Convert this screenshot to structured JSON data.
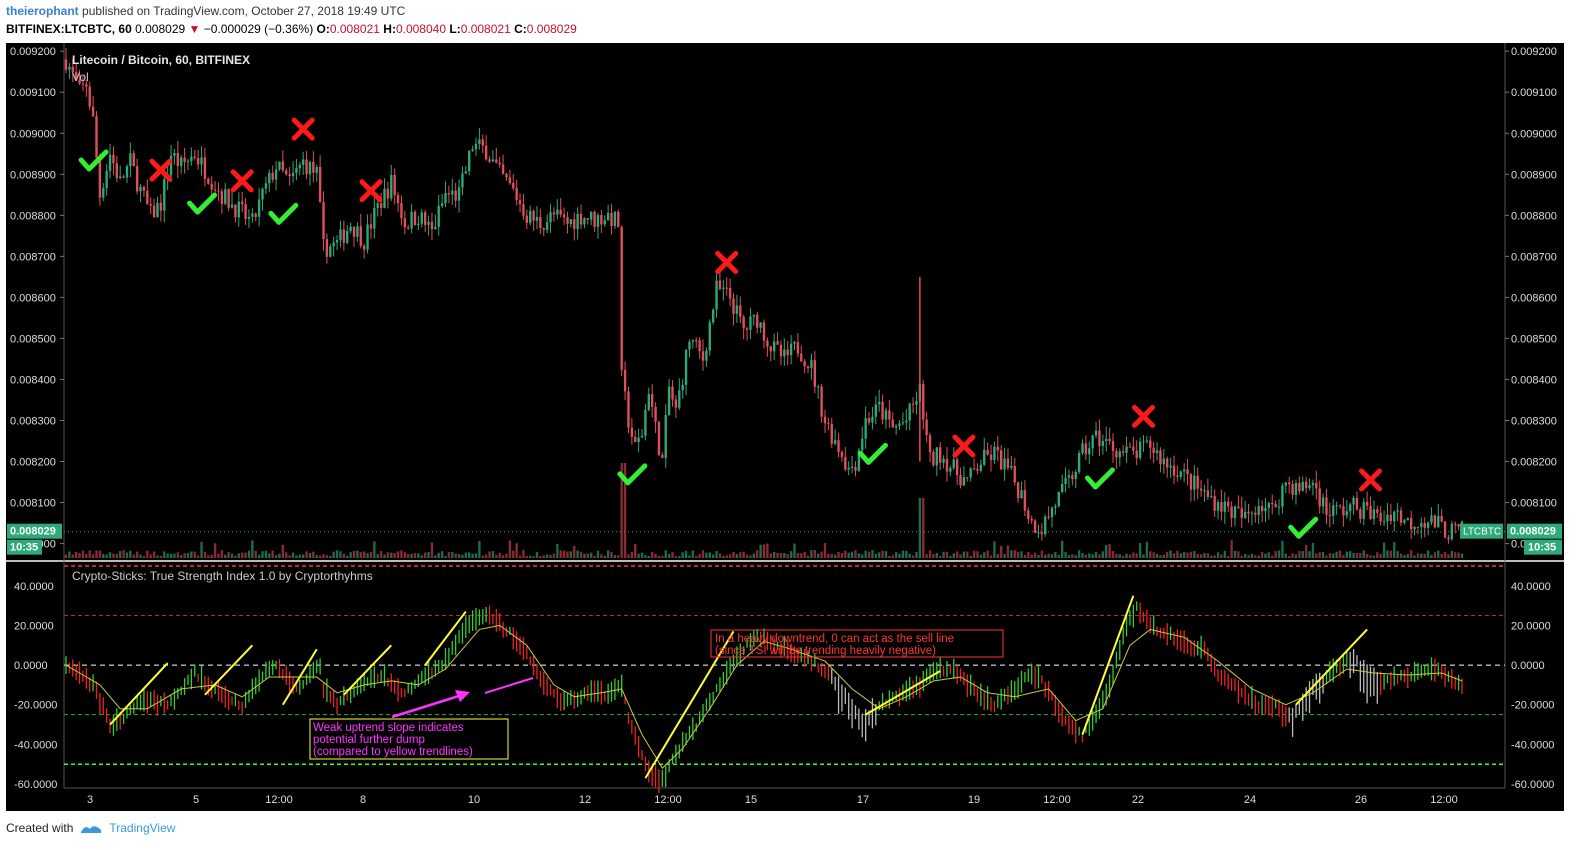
{
  "header": {
    "username": "theierophant",
    "published_text": "published on TradingView.com, October 27, 2018 19:49 UTC",
    "symbol": "BITFINEX:LTCBTC, 60",
    "last": "0.008029",
    "change": "−0.000029 (−0.36%)",
    "o_label": "O:",
    "o_value": "0.008021",
    "h_label": "H:",
    "h_value": "0.008040",
    "l_label": "L:",
    "l_value": "0.008021",
    "c_label": "C:",
    "c_value": "0.008029"
  },
  "main_pane": {
    "title": "Litecoin / Bitcoin, 60, BITFINEX",
    "vol_label": "Vol",
    "price_ticks": [
      "0.009200",
      "0.009100",
      "0.009000",
      "0.008900",
      "0.008800",
      "0.008700",
      "0.008600",
      "0.008500",
      "0.008400",
      "0.008300",
      "0.008200",
      "0.008100",
      "0.008000"
    ],
    "last_price_label": "0.008029",
    "time_label": "10:35",
    "symbol_label": "LTCBTC"
  },
  "indicator_pane": {
    "title": "Crypto-Sticks: True Strength Index 1.0 by Cryptorthyhms",
    "ticks": [
      "40.0000",
      "20.0000",
      "0.0000",
      "-20.0000",
      "-40.0000",
      "-60.0000"
    ],
    "annotation_red_line1": "In a heavy downtrend, 0 can act as the sell line",
    "annotation_red_line2": "(since TSI will be trending heavily negative)",
    "annotation_mag_line1": "Weak uptrend slope indicates",
    "annotation_mag_line2": "potential further dump",
    "annotation_mag_line3": "(compared to yellow trendlines)"
  },
  "x_axis": {
    "labels": [
      "3",
      "5",
      "12:00",
      "8",
      "10",
      "12",
      "12:00",
      "15",
      "17",
      "19",
      "12:00",
      "22",
      "24",
      "26",
      "12:00"
    ]
  },
  "footer": {
    "created_with": "Created with",
    "brand": "TradingView"
  },
  "colors": {
    "up": "#2ea97a",
    "down": "#e0505a",
    "sell_mark": "#ff1a1a",
    "buy_mark": "#33ee33",
    "trendline": "#ffff33",
    "annotation_red": "#ff3333",
    "annotation_magenta": "#ff33ff"
  },
  "chart_data": [
    {
      "type": "candlestick",
      "title": "Litecoin / Bitcoin, 60, BITFINEX",
      "ylim": [
        0.00796,
        0.00922
      ],
      "path_points": [
        [
          0,
          0.00918
        ],
        [
          4,
          0.0091
        ],
        [
          6,
          0.00912
        ],
        [
          8,
          0.00903
        ],
        [
          10,
          0.00885
        ],
        [
          13,
          0.00895
        ],
        [
          16,
          0.00888
        ],
        [
          19,
          0.00893
        ],
        [
          22,
          0.00886
        ],
        [
          25,
          0.0088
        ],
        [
          28,
          0.00883
        ],
        [
          31,
          0.00895
        ],
        [
          34,
          0.00892
        ],
        [
          38,
          0.00895
        ],
        [
          42,
          0.0089
        ],
        [
          46,
          0.00885
        ],
        [
          50,
          0.00882
        ],
        [
          55,
          0.00878
        ],
        [
          58,
          0.00885
        ],
        [
          62,
          0.00892
        ],
        [
          66,
          0.00888
        ],
        [
          70,
          0.00893
        ],
        [
          74,
          0.0089
        ],
        [
          76,
          0.00872
        ],
        [
          80,
          0.00873
        ],
        [
          84,
          0.00878
        ],
        [
          88,
          0.00874
        ],
        [
          92,
          0.00882
        ],
        [
          96,
          0.00888
        ],
        [
          100,
          0.00878
        ],
        [
          104,
          0.0088
        ],
        [
          108,
          0.00876
        ],
        [
          112,
          0.00885
        ],
        [
          116,
          0.00885
        ],
        [
          120,
          0.00897
        ],
        [
          124,
          0.00896
        ],
        [
          128,
          0.0089
        ],
        [
          132,
          0.00886
        ],
        [
          136,
          0.0088
        ],
        [
          140,
          0.00878
        ],
        [
          144,
          0.0088
        ],
        [
          148,
          0.00878
        ],
        [
          152,
          0.0088
        ],
        [
          156,
          0.00879
        ],
        [
          160,
          0.0088
        ],
        [
          163,
          0.00878
        ],
        [
          164,
          0.0084
        ],
        [
          166,
          0.0083
        ],
        [
          168,
          0.00823
        ],
        [
          170,
          0.00827
        ],
        [
          172,
          0.00838
        ],
        [
          174,
          0.00828
        ],
        [
          176,
          0.0082
        ],
        [
          178,
          0.00838
        ],
        [
          180,
          0.00832
        ],
        [
          184,
          0.0085
        ],
        [
          188,
          0.00845
        ],
        [
          192,
          0.00862
        ],
        [
          196,
          0.0086
        ],
        [
          200,
          0.00852
        ],
        [
          204,
          0.00855
        ],
        [
          208,
          0.00848
        ],
        [
          212,
          0.00845
        ],
        [
          216,
          0.00848
        ],
        [
          220,
          0.00843
        ],
        [
          224,
          0.0083
        ],
        [
          227,
          0.00825
        ],
        [
          229,
          0.00822
        ],
        [
          231,
          0.00818
        ],
        [
          233,
          0.0082
        ],
        [
          236,
          0.0083
        ],
        [
          240,
          0.00833
        ],
        [
          244,
          0.00828
        ],
        [
          248,
          0.0083
        ],
        [
          252,
          0.00837
        ],
        [
          255,
          0.0082
        ],
        [
          258,
          0.00822
        ],
        [
          262,
          0.00818
        ],
        [
          266,
          0.00815
        ],
        [
          270,
          0.0082
        ],
        [
          274,
          0.00822
        ],
        [
          278,
          0.00818
        ],
        [
          282,
          0.00812
        ],
        [
          285,
          0.00805
        ],
        [
          288,
          0.00804
        ],
        [
          292,
          0.0081
        ],
        [
          296,
          0.00815
        ],
        [
          300,
          0.00822
        ],
        [
          304,
          0.00826
        ],
        [
          308,
          0.00824
        ],
        [
          312,
          0.00822
        ],
        [
          316,
          0.00822
        ],
        [
          320,
          0.00824
        ],
        [
          324,
          0.0082
        ],
        [
          328,
          0.00818
        ],
        [
          332,
          0.00815
        ],
        [
          336,
          0.00812
        ],
        [
          340,
          0.0081
        ],
        [
          344,
          0.00808
        ],
        [
          348,
          0.00806
        ],
        [
          352,
          0.0081
        ],
        [
          356,
          0.00808
        ],
        [
          360,
          0.00815
        ],
        [
          364,
          0.00813
        ],
        [
          368,
          0.00815
        ],
        [
          372,
          0.00808
        ],
        [
          376,
          0.00808
        ],
        [
          380,
          0.00809
        ],
        [
          384,
          0.00808
        ],
        [
          388,
          0.00806
        ],
        [
          392,
          0.00808
        ],
        [
          396,
          0.00805
        ],
        [
          400,
          0.00806
        ],
        [
          404,
          0.00805
        ],
        [
          408,
          0.00803
        ],
        [
          412,
          0.00803
        ]
      ],
      "spikes": [
        {
          "bar": 252,
          "high": 0.00865
        }
      ]
    },
    {
      "type": "bar",
      "name": "Vol"
    },
    {
      "type": "line",
      "title": "Crypto-Sticks: True Strength Index 1.0 by Cryptorthyhms",
      "ylim": [
        -62,
        52
      ],
      "levels": [
        50,
        25,
        0,
        -25,
        -50
      ],
      "tsi_points": [
        [
          0,
          0
        ],
        [
          8,
          -10
        ],
        [
          13,
          -30
        ],
        [
          16,
          -28
        ],
        [
          22,
          -18
        ],
        [
          30,
          -20
        ],
        [
          38,
          -4
        ],
        [
          42,
          -10
        ],
        [
          46,
          -15
        ],
        [
          52,
          -20
        ],
        [
          58,
          -5
        ],
        [
          62,
          0
        ],
        [
          68,
          -12
        ],
        [
          72,
          -5
        ],
        [
          75,
          0
        ],
        [
          76,
          -12
        ],
        [
          80,
          -20
        ],
        [
          84,
          -14
        ],
        [
          90,
          -6
        ],
        [
          94,
          -6
        ],
        [
          96,
          -10
        ],
        [
          100,
          -14
        ],
        [
          106,
          -6
        ],
        [
          112,
          2
        ],
        [
          118,
          20
        ],
        [
          124,
          25
        ],
        [
          130,
          18
        ],
        [
          136,
          5
        ],
        [
          140,
          -6
        ],
        [
          146,
          -20
        ],
        [
          150,
          -17
        ],
        [
          155,
          -13
        ],
        [
          160,
          -15
        ],
        [
          164,
          -10
        ],
        [
          166,
          -28
        ],
        [
          170,
          -45
        ],
        [
          172,
          -55
        ],
        [
          176,
          -58
        ],
        [
          180,
          -45
        ],
        [
          186,
          -30
        ],
        [
          192,
          -12
        ],
        [
          198,
          5
        ],
        [
          204,
          15
        ],
        [
          210,
          10
        ],
        [
          216,
          5
        ],
        [
          222,
          0
        ],
        [
          228,
          -10
        ],
        [
          232,
          -20
        ],
        [
          236,
          -28
        ],
        [
          240,
          -20
        ],
        [
          246,
          -15
        ],
        [
          252,
          -10
        ],
        [
          256,
          -2
        ],
        [
          262,
          -2
        ],
        [
          266,
          -10
        ],
        [
          270,
          -15
        ],
        [
          274,
          -20
        ],
        [
          278,
          -15
        ],
        [
          284,
          -5
        ],
        [
          288,
          -8
        ],
        [
          292,
          -20
        ],
        [
          296,
          -30
        ],
        [
          300,
          -35
        ],
        [
          304,
          -25
        ],
        [
          308,
          -10
        ],
        [
          312,
          15
        ],
        [
          316,
          30
        ],
        [
          320,
          20
        ],
        [
          326,
          15
        ],
        [
          332,
          10
        ],
        [
          336,
          8
        ],
        [
          340,
          -5
        ],
        [
          344,
          -10
        ],
        [
          348,
          -15
        ],
        [
          352,
          -20
        ],
        [
          356,
          -20
        ],
        [
          360,
          -25
        ],
        [
          364,
          -22
        ],
        [
          368,
          -10
        ],
        [
          372,
          -5
        ],
        [
          376,
          0
        ],
        [
          380,
          5
        ],
        [
          384,
          -5
        ],
        [
          388,
          -8
        ],
        [
          392,
          -6
        ],
        [
          396,
          -5
        ],
        [
          400,
          -4
        ],
        [
          404,
          -3
        ],
        [
          408,
          -5
        ],
        [
          412,
          -12
        ]
      ],
      "signal_points": [
        [
          0,
          0
        ],
        [
          10,
          -10
        ],
        [
          16,
          -22
        ],
        [
          24,
          -22
        ],
        [
          34,
          -12
        ],
        [
          44,
          -10
        ],
        [
          52,
          -16
        ],
        [
          60,
          -6
        ],
        [
          66,
          -6
        ],
        [
          74,
          -6
        ],
        [
          80,
          -14
        ],
        [
          88,
          -10
        ],
        [
          96,
          -8
        ],
        [
          104,
          -10
        ],
        [
          112,
          -2
        ],
        [
          122,
          18
        ],
        [
          128,
          20
        ],
        [
          136,
          10
        ],
        [
          144,
          -10
        ],
        [
          150,
          -16
        ],
        [
          158,
          -14
        ],
        [
          164,
          -12
        ],
        [
          170,
          -35
        ],
        [
          176,
          -52
        ],
        [
          182,
          -42
        ],
        [
          190,
          -22
        ],
        [
          198,
          0
        ],
        [
          206,
          12
        ],
        [
          214,
          8
        ],
        [
          224,
          2
        ],
        [
          232,
          -12
        ],
        [
          240,
          -22
        ],
        [
          248,
          -16
        ],
        [
          256,
          -8
        ],
        [
          264,
          -6
        ],
        [
          272,
          -14
        ],
        [
          280,
          -16
        ],
        [
          290,
          -12
        ],
        [
          298,
          -28
        ],
        [
          306,
          -22
        ],
        [
          314,
          10
        ],
        [
          320,
          18
        ],
        [
          330,
          14
        ],
        [
          340,
          2
        ],
        [
          350,
          -12
        ],
        [
          360,
          -20
        ],
        [
          368,
          -14
        ],
        [
          378,
          -2
        ],
        [
          386,
          -4
        ],
        [
          396,
          -5
        ],
        [
          406,
          -4
        ],
        [
          412,
          -8
        ]
      ],
      "marks": [
        {
          "type": "sell",
          "bar": 28
        },
        {
          "type": "sell",
          "bar": 52
        },
        {
          "type": "sell",
          "bar": 70
        },
        {
          "type": "sell",
          "bar": 90
        },
        {
          "type": "sell",
          "bar": 195
        },
        {
          "type": "sell",
          "bar": 265
        },
        {
          "type": "sell",
          "bar": 318
        },
        {
          "type": "sell",
          "bar": 385
        },
        {
          "type": "buy",
          "bar": 8
        },
        {
          "type": "buy",
          "bar": 40
        },
        {
          "type": "buy",
          "bar": 64
        },
        {
          "type": "buy",
          "bar": 167
        },
        {
          "type": "buy",
          "bar": 238
        },
        {
          "type": "buy",
          "bar": 305
        },
        {
          "type": "buy",
          "bar": 365
        }
      ],
      "trendlines": [
        {
          "from": [
            13,
            -30
          ],
          "to": [
            30,
            1
          ]
        },
        {
          "from": [
            41,
            -15
          ],
          "to": [
            55,
            10
          ]
        },
        {
          "from": [
            64,
            -20
          ],
          "to": [
            74,
            8
          ]
        },
        {
          "from": [
            82,
            -15
          ],
          "to": [
            96,
            10
          ]
        },
        {
          "from": [
            106,
            0
          ],
          "to": [
            118,
            27
          ]
        },
        {
          "from": [
            171,
            -57
          ],
          "to": [
            197,
            17
          ]
        },
        {
          "from": [
            236,
            -25
          ],
          "to": [
            258,
            -3
          ]
        },
        {
          "from": [
            300,
            -35
          ],
          "to": [
            315,
            35
          ]
        },
        {
          "from": [
            363,
            -20
          ],
          "to": [
            384,
            18
          ]
        }
      ]
    }
  ]
}
